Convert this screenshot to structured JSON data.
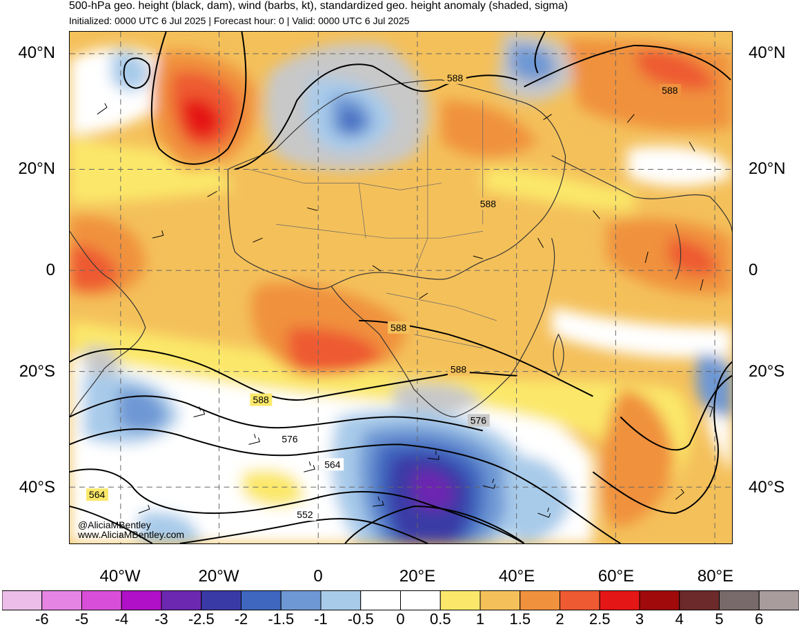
{
  "header": {
    "title": "500-hPa geo. height (black, dam), wind (barbs, kt), standardized geo. height anomaly (shaded, sigma)",
    "subtitle": "Initialized: 0000 UTC 6 Jul 2025 | Forecast hour: 0 | Valid: 0000 UTC 6 Jul 2025"
  },
  "axes": {
    "lat_labels": [
      "40°N",
      "20°N",
      "0",
      "20°S",
      "40°S"
    ],
    "lon_labels": [
      "40°W",
      "20°W",
      "0",
      "20°E",
      "40°E",
      "60°E",
      "80°E"
    ]
  },
  "contour_labels": [
    "588",
    "588",
    "588",
    "588",
    "588",
    "588",
    "576",
    "576",
    "564",
    "564",
    "552"
  ],
  "credit": {
    "handle": "@AliciaMBentley",
    "url": "www.AliciaMBentley.com"
  },
  "colorbar": {
    "labels": [
      "-6",
      "-5",
      "-4",
      "-3",
      "-2.5",
      "-2",
      "-1.5",
      "-1",
      "-0.5",
      "0",
      "0.5",
      "1",
      "1.5",
      "2",
      "2.5",
      "3",
      "4",
      "5",
      "6"
    ],
    "colors": [
      "#ebbde8",
      "#e684e4",
      "#d94ed8",
      "#b010c8",
      "#6c28b0",
      "#3a3aa6",
      "#3f67bf",
      "#6e98d4",
      "#a8cbea",
      "#ffffff",
      "#ffffff",
      "#fbe86a",
      "#f4c05a",
      "#f0913e",
      "#ee5a32",
      "#e51616",
      "#a00a0a",
      "#6d2a2a",
      "#786a6a",
      "#a89c9c"
    ]
  }
}
